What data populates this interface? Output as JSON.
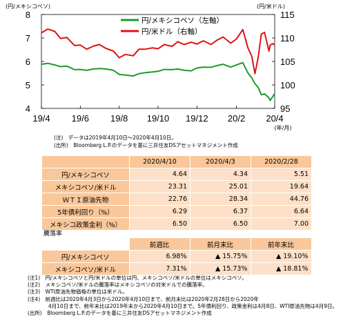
{
  "chart_data": {
    "type": "line",
    "left_axis_unit": "(円/メキシコペソ)",
    "right_axis_unit": "(円/米ドル)",
    "x_unit": "(年/月)",
    "left_ylim": [
      4,
      8
    ],
    "right_ylim": [
      95,
      115
    ],
    "left_ticks": [
      "8",
      "7",
      "6",
      "5",
      "4"
    ],
    "right_ticks": [
      "115",
      "110",
      "105",
      "100",
      "95"
    ],
    "x_ticks": [
      "19/4",
      "19/6",
      "19/8",
      "19/10",
      "19/12",
      "20/2",
      "20/4"
    ],
    "legend": [
      "円/メキシコペソ（左軸）",
      "円/米ドル（右軸）"
    ],
    "colors": {
      "peso": "#1a9a2a",
      "usd": "#e01010"
    },
    "series": [
      {
        "name": "円/メキシコペソ（左軸）",
        "axis": "left",
        "points": [
          [
            "2019-04-10",
            5.88
          ],
          [
            "2019-04-20",
            5.92
          ],
          [
            "2019-05-01",
            5.85
          ],
          [
            "2019-05-10",
            5.78
          ],
          [
            "2019-05-20",
            5.8
          ],
          [
            "2019-06-01",
            5.65
          ],
          [
            "2019-06-10",
            5.66
          ],
          [
            "2019-06-20",
            5.62
          ],
          [
            "2019-07-01",
            5.68
          ],
          [
            "2019-07-10",
            5.7
          ],
          [
            "2019-07-20",
            5.68
          ],
          [
            "2019-08-01",
            5.62
          ],
          [
            "2019-08-10",
            5.45
          ],
          [
            "2019-08-20",
            5.42
          ],
          [
            "2019-09-01",
            5.38
          ],
          [
            "2019-09-10",
            5.48
          ],
          [
            "2019-09-20",
            5.52
          ],
          [
            "2019-10-01",
            5.55
          ],
          [
            "2019-10-10",
            5.58
          ],
          [
            "2019-10-20",
            5.66
          ],
          [
            "2019-11-01",
            5.65
          ],
          [
            "2019-11-10",
            5.68
          ],
          [
            "2019-11-20",
            5.62
          ],
          [
            "2019-12-01",
            5.6
          ],
          [
            "2019-12-10",
            5.72
          ],
          [
            "2019-12-20",
            5.76
          ],
          [
            "2020-01-01",
            5.75
          ],
          [
            "2020-01-10",
            5.82
          ],
          [
            "2020-01-20",
            5.88
          ],
          [
            "2020-02-01",
            5.76
          ],
          [
            "2020-02-10",
            5.85
          ],
          [
            "2020-02-20",
            5.95
          ],
          [
            "2020-02-28",
            5.51
          ],
          [
            "2020-03-05",
            5.3
          ],
          [
            "2020-03-10",
            5.05
          ],
          [
            "2020-03-15",
            4.9
          ],
          [
            "2020-03-20",
            4.58
          ],
          [
            "2020-03-25",
            4.62
          ],
          [
            "2020-04-01",
            4.45
          ],
          [
            "2020-04-03",
            4.34
          ],
          [
            "2020-04-07",
            4.5
          ],
          [
            "2020-04-10",
            4.64
          ]
        ]
      },
      {
        "name": "円/米ドル（右軸）",
        "axis": "right",
        "points": [
          [
            "2019-04-10",
            111.1
          ],
          [
            "2019-04-20",
            111.9
          ],
          [
            "2019-05-01",
            111.4
          ],
          [
            "2019-05-10",
            109.9
          ],
          [
            "2019-05-20",
            110.1
          ],
          [
            "2019-06-01",
            108.4
          ],
          [
            "2019-06-10",
            108.5
          ],
          [
            "2019-06-20",
            107.6
          ],
          [
            "2019-07-01",
            108.3
          ],
          [
            "2019-07-10",
            108.6
          ],
          [
            "2019-07-20",
            107.8
          ],
          [
            "2019-08-01",
            107.2
          ],
          [
            "2019-08-10",
            105.8
          ],
          [
            "2019-08-20",
            106.5
          ],
          [
            "2019-09-01",
            106.2
          ],
          [
            "2019-09-10",
            107.6
          ],
          [
            "2019-09-20",
            107.6
          ],
          [
            "2019-10-01",
            107.9
          ],
          [
            "2019-10-10",
            107.7
          ],
          [
            "2019-10-20",
            108.6
          ],
          [
            "2019-11-01",
            108.2
          ],
          [
            "2019-11-10",
            109.2
          ],
          [
            "2019-11-20",
            108.6
          ],
          [
            "2019-12-01",
            109.1
          ],
          [
            "2019-12-10",
            108.7
          ],
          [
            "2019-12-20",
            109.4
          ],
          [
            "2020-01-01",
            108.6
          ],
          [
            "2020-01-10",
            109.5
          ],
          [
            "2020-01-20",
            110.2
          ],
          [
            "2020-02-01",
            108.9
          ],
          [
            "2020-02-10",
            109.8
          ],
          [
            "2020-02-20",
            111.8
          ],
          [
            "2020-02-28",
            107.9
          ],
          [
            "2020-03-05",
            106.1
          ],
          [
            "2020-03-10",
            102.4
          ],
          [
            "2020-03-15",
            105.8
          ],
          [
            "2020-03-20",
            110.8
          ],
          [
            "2020-03-25",
            111.2
          ],
          [
            "2020-04-01",
            107.2
          ],
          [
            "2020-04-03",
            108.5
          ],
          [
            "2020-04-07",
            108.8
          ],
          [
            "2020-04-10",
            108.5
          ]
        ]
      }
    ]
  },
  "chart_notes": [
    "(注)　データは2019年4月10日～2020年4月10日。",
    "(出所)　Bloomberg L.P.のデータを基に三井住友DSアセットマネジメント作成"
  ],
  "table1": {
    "headers": [
      "2020/4/10",
      "2020/4/3",
      "2020/2/28"
    ],
    "rows": [
      {
        "label": "円/メキシコペソ",
        "values": [
          "4.64",
          "4.34",
          "5.51"
        ]
      },
      {
        "label": "メキシコペソ/米ドル",
        "values": [
          "23.31",
          "25.01",
          "19.64"
        ]
      },
      {
        "label": "ＷＴＩ原油先物",
        "values": [
          "22.76",
          "28.34",
          "44.76"
        ]
      },
      {
        "label": "5年債利回り（%）",
        "values": [
          "6.29",
          "6.37",
          "6.64"
        ]
      },
      {
        "label": "メキシコ政策金利（%）",
        "values": [
          "6.50",
          "6.50",
          "7.00"
        ]
      }
    ]
  },
  "table2": {
    "title": "騰落率",
    "headers": [
      "前週比",
      "前月末比",
      "前年末比"
    ],
    "rows": [
      {
        "label": "円/メキシコペソ",
        "values": [
          "6.98%",
          "▲ 15.75%",
          "▲ 19.10%"
        ]
      },
      {
        "label": "メキシコペソ/米ドル",
        "values": [
          "7.31%",
          "▲ 15.73%",
          "▲ 18.81%"
        ]
      }
    ]
  },
  "footnotes": [
    "(注1)　円/メキシコペソと円/米ドルの単位は円、メキシコペソ/米ドルの単位はメキシコペソ。",
    "(注2)　メキシコペソ/米ドルの騰落率はメキシコペソの対米ドルでの騰落率。",
    "(注3)　WTI原油先物価格の単位は米ドル。",
    "(注4)　前週比は2020年4月3日から2020年4月10日まで、前月末比は2020年2月28日から2020年",
    "　　　　4月10日まで、前年末比は2019年末から2020年4月10日まで。5年債利回り、政策金利は4月8日、WTI原油先物は4月9日。",
    "(出所)　Bloomberg L.P.のデータを基に三井住友DSアセットマネジメント作成"
  ]
}
